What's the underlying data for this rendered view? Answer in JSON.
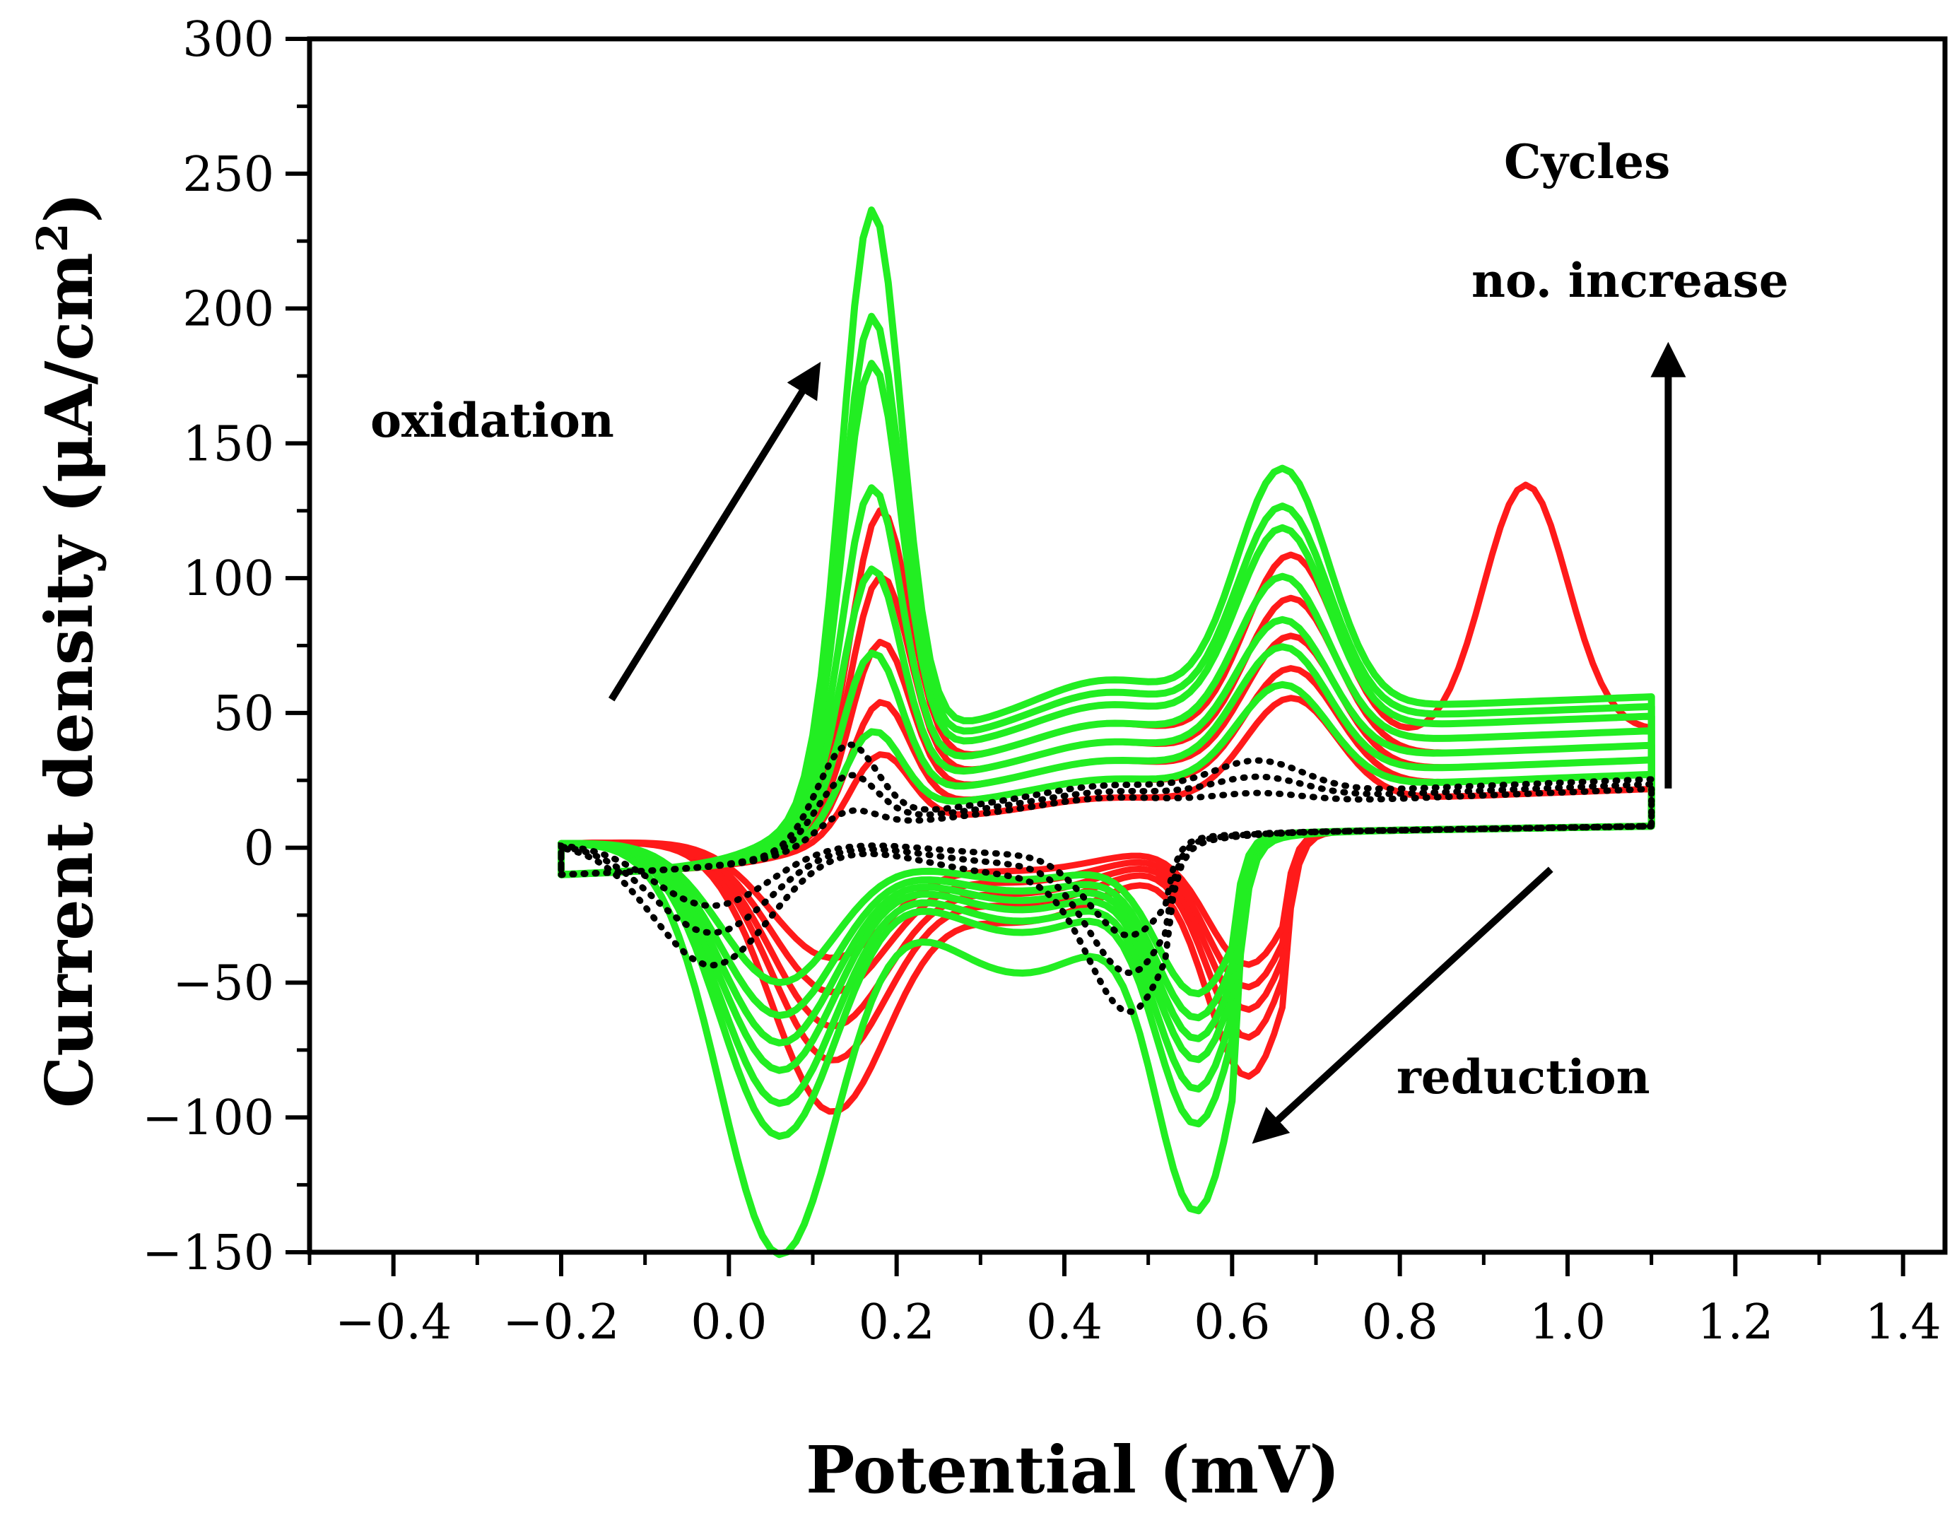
{
  "chart_data": {
    "type": "line",
    "xlabel": "Potential (mV)",
    "ylabel_main": "Current density (μA/cm",
    "ylabel_sup": "2",
    "ylabel_close": ")",
    "xlim": [
      -0.5,
      1.45
    ],
    "ylim": [
      -150,
      300
    ],
    "xticks": [
      -0.4,
      -0.2,
      0.0,
      0.2,
      0.4,
      0.6,
      0.8,
      1.0,
      1.2,
      1.4
    ],
    "xtick_labels": [
      "−0.4",
      "−0.2",
      "0.0",
      "0.2",
      "0.4",
      "0.6",
      "0.8",
      "1.0",
      "1.2",
      "1.4"
    ],
    "yticks": [
      -150,
      -100,
      -50,
      0,
      50,
      100,
      150,
      200,
      250,
      300
    ],
    "ytick_labels": [
      "−150",
      "−100",
      "−50",
      "0",
      "50",
      "100",
      "150",
      "200",
      "250",
      "300"
    ],
    "colors": {
      "red": "#ff1a1a",
      "green": "#22ee22",
      "black": "#000000"
    },
    "red_series": [
      {
        "name": "red-cycle-1",
        "peak_ox1": 135,
        "peak_ox2": 108,
        "plateau": 42,
        "red1": -90,
        "red2": -82,
        "extra_peak": 135
      },
      {
        "name": "red-cycle-2",
        "peak_ox1": 110,
        "peak_ox2": 92,
        "plateau": 36,
        "red1": -72,
        "red2": -68
      },
      {
        "name": "red-cycle-3",
        "peak_ox1": 85,
        "peak_ox2": 78,
        "plateau": 30,
        "red1": -60,
        "red2": -58
      },
      {
        "name": "red-cycle-4",
        "peak_ox1": 62,
        "peak_ox2": 66,
        "plateau": 24,
        "red1": -48,
        "red2": -50
      },
      {
        "name": "red-cycle-5",
        "peak_ox1": 42,
        "peak_ox2": 55,
        "plateau": 18,
        "red1": -36,
        "red2": -42
      }
    ],
    "green_series": [
      {
        "name": "green-cycle-1",
        "peak_ox1": 250,
        "peak_ox2": 140,
        "plateau": 56,
        "red1": -145,
        "red2": -123
      },
      {
        "name": "green-cycle-2",
        "peak_ox1": 210,
        "peak_ox2": 126,
        "plateau": 52,
        "red1": -102,
        "red2": -94
      },
      {
        "name": "green-cycle-3",
        "peak_ox1": 192,
        "peak_ox2": 118,
        "plateau": 48,
        "red1": -90,
        "red2": -82
      },
      {
        "name": "green-cycle-4",
        "peak_ox1": 145,
        "peak_ox2": 100,
        "plateau": 42,
        "red1": -78,
        "red2": -72
      },
      {
        "name": "green-cycle-5",
        "peak_ox1": 114,
        "peak_ox2": 84,
        "plateau": 36,
        "red1": -68,
        "red2": -65
      },
      {
        "name": "green-cycle-6",
        "peak_ox1": 82,
        "peak_ox2": 74,
        "plateau": 30,
        "red1": -58,
        "red2": -58
      },
      {
        "name": "green-cycle-7",
        "peak_ox1": 52,
        "peak_ox2": 60,
        "plateau": 24,
        "red1": -46,
        "red2": -50
      }
    ],
    "black_series": [
      {
        "name": "black-cycle-1",
        "peak_ox1": 50,
        "peak_ox2": 32,
        "plateau": 22,
        "red1": -40,
        "red2": -52
      },
      {
        "name": "black-cycle-2",
        "peak_ox1": 38,
        "peak_ox2": 26,
        "plateau": 20,
        "red1": -28,
        "red2": -40
      },
      {
        "name": "black-cycle-3",
        "peak_ox1": 24,
        "peak_ox2": 20,
        "plateau": 18,
        "red1": -18,
        "red2": -28
      }
    ],
    "annotations": {
      "oxidation": "oxidation",
      "reduction": "reduction",
      "cycles": "Cycles",
      "no_increase": "no. increase"
    },
    "arrows": [
      {
        "name": "oxidation-arrow",
        "from": [
          -0.14,
          55
        ],
        "to": [
          0.105,
          178
        ]
      },
      {
        "name": "reduction-arrow",
        "from": [
          0.98,
          -8
        ],
        "to": [
          0.63,
          -108
        ]
      },
      {
        "name": "cycles-arrow",
        "from": [
          1.12,
          22
        ],
        "to": [
          1.12,
          185
        ]
      }
    ]
  }
}
